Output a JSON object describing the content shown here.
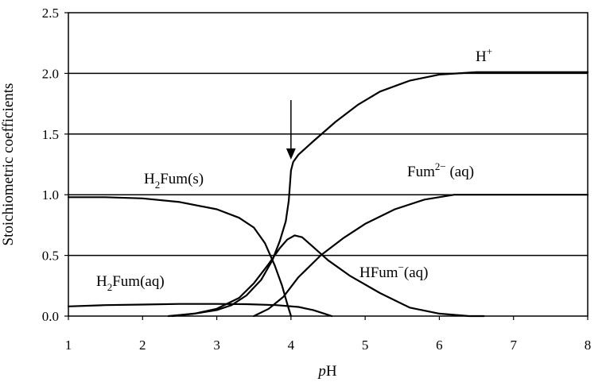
{
  "chart_data": {
    "type": "line",
    "title": "",
    "xlabel_italic": "p",
    "xlabel_rest": "H",
    "ylabel": "Stoichiometric coefficients",
    "xlim": [
      1,
      8
    ],
    "ylim": [
      0,
      2.5
    ],
    "x_ticks": [
      "1",
      "2",
      "3",
      "4",
      "5",
      "6",
      "7",
      "8"
    ],
    "y_ticks": [
      "0.0",
      "0.5",
      "1.0",
      "1.5",
      "2.0",
      "2.5"
    ],
    "grid": "horizontal",
    "arrow": {
      "x": 4.0,
      "y_from": 1.78,
      "y_to": 1.29
    },
    "annotations": {
      "h_plus": {
        "base": "H",
        "sup": "+"
      },
      "h2fum_s": {
        "pre": "H",
        "sub": "2",
        "post": "Fum(s)"
      },
      "fum": {
        "base": "Fum",
        "sup": "2−",
        "post": " (aq)"
      },
      "hfum": {
        "base": "HFum",
        "sup": "−",
        "post": "(aq)"
      },
      "h2fum_aq": {
        "pre": "H",
        "sub": "2",
        "post": "Fum(aq)"
      }
    },
    "series": [
      {
        "points": [
          [
            2.4,
            0.0
          ],
          [
            2.7,
            0.02
          ],
          [
            3.0,
            0.05
          ],
          [
            3.2,
            0.09
          ],
          [
            3.4,
            0.17
          ],
          [
            3.6,
            0.3
          ],
          [
            3.75,
            0.46
          ],
          [
            3.85,
            0.62
          ],
          [
            3.93,
            0.78
          ],
          [
            3.97,
            0.95
          ],
          [
            4.0,
            1.2
          ],
          [
            4.03,
            1.27
          ],
          [
            4.1,
            1.33
          ],
          [
            4.3,
            1.44
          ],
          [
            4.6,
            1.6
          ],
          [
            4.9,
            1.74
          ],
          [
            5.2,
            1.85
          ],
          [
            5.6,
            1.94
          ],
          [
            6.0,
            1.99
          ],
          [
            6.5,
            2.01
          ],
          [
            7.0,
            2.01
          ],
          [
            8.0,
            2.01
          ]
        ]
      },
      {
        "points": [
          [
            1.0,
            0.98
          ],
          [
            1.5,
            0.98
          ],
          [
            2.0,
            0.97
          ],
          [
            2.5,
            0.94
          ],
          [
            3.0,
            0.88
          ],
          [
            3.3,
            0.81
          ],
          [
            3.5,
            0.73
          ],
          [
            3.65,
            0.6
          ],
          [
            3.78,
            0.42
          ],
          [
            3.88,
            0.25
          ],
          [
            3.95,
            0.1
          ],
          [
            4.0,
            0.0
          ]
        ]
      },
      {
        "points": [
          [
            3.5,
            0.0
          ],
          [
            3.7,
            0.06
          ],
          [
            3.9,
            0.16
          ],
          [
            4.1,
            0.32
          ],
          [
            4.4,
            0.5
          ],
          [
            4.7,
            0.64
          ],
          [
            5.0,
            0.76
          ],
          [
            5.4,
            0.88
          ],
          [
            5.8,
            0.96
          ],
          [
            6.2,
            1.0
          ],
          [
            7.0,
            1.0
          ],
          [
            8.0,
            1.0
          ]
        ]
      },
      {
        "points": [
          [
            2.35,
            0.0
          ],
          [
            2.7,
            0.02
          ],
          [
            3.0,
            0.06
          ],
          [
            3.3,
            0.15
          ],
          [
            3.5,
            0.27
          ],
          [
            3.7,
            0.43
          ],
          [
            3.85,
            0.56
          ],
          [
            3.95,
            0.63
          ],
          [
            4.05,
            0.665
          ],
          [
            4.15,
            0.65
          ],
          [
            4.3,
            0.57
          ],
          [
            4.5,
            0.46
          ],
          [
            4.8,
            0.33
          ],
          [
            5.2,
            0.19
          ],
          [
            5.6,
            0.07
          ],
          [
            6.0,
            0.02
          ],
          [
            6.4,
            0.0
          ],
          [
            6.6,
            0.0
          ]
        ]
      },
      {
        "points": [
          [
            1.0,
            0.08
          ],
          [
            1.5,
            0.09
          ],
          [
            2.0,
            0.095
          ],
          [
            2.5,
            0.1
          ],
          [
            3.0,
            0.1
          ],
          [
            3.4,
            0.098
          ],
          [
            3.8,
            0.09
          ],
          [
            4.1,
            0.075
          ],
          [
            4.3,
            0.05
          ],
          [
            4.45,
            0.02
          ],
          [
            4.55,
            0.0
          ]
        ]
      }
    ]
  }
}
